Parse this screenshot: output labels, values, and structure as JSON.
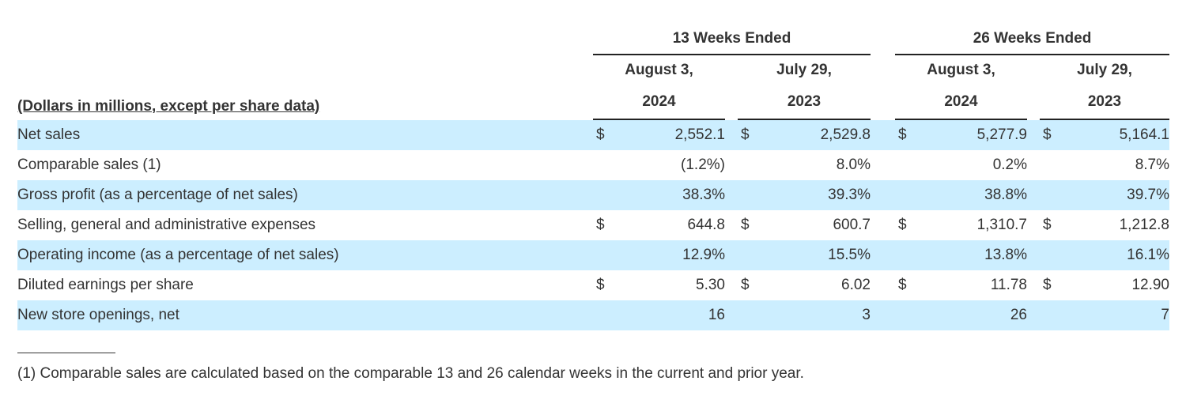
{
  "header": {
    "period_13": "13 Weeks Ended",
    "period_26": "26 Weeks Ended",
    "col1_month": "August 3,",
    "col1_year": "2024",
    "col2_month": "July 29,",
    "col2_year": "2023",
    "col3_month": "August 3,",
    "col3_year": "2024",
    "col4_month": "July 29,",
    "col4_year": "2023",
    "caption": "(Dollars in millions, except per share data)"
  },
  "rows": [
    {
      "label": "Net sales",
      "c1_cur": "$",
      "c1": "2,552.1",
      "c2_cur": "$",
      "c2": "2,529.8",
      "c3_cur": "$",
      "c3": "5,277.9",
      "c4_cur": "$",
      "c4": "5,164.1"
    },
    {
      "label": "Comparable sales (1)",
      "c1_cur": "",
      "c1": "(1.2%)",
      "c2_cur": "",
      "c2": "8.0%",
      "c3_cur": "",
      "c3": "0.2%",
      "c4_cur": "",
      "c4": "8.7%"
    },
    {
      "label": "Gross profit (as a percentage of net sales)",
      "c1_cur": "",
      "c1": "38.3%",
      "c2_cur": "",
      "c2": "39.3%",
      "c3_cur": "",
      "c3": "38.8%",
      "c4_cur": "",
      "c4": "39.7%"
    },
    {
      "label": "Selling, general and administrative expenses",
      "c1_cur": "$",
      "c1": "644.8",
      "c2_cur": "$",
      "c2": "600.7",
      "c3_cur": "$",
      "c3": "1,310.7",
      "c4_cur": "$",
      "c4": "1,212.8"
    },
    {
      "label": "Operating income (as a percentage of net sales)",
      "c1_cur": "",
      "c1": "12.9%",
      "c2_cur": "",
      "c2": "15.5%",
      "c3_cur": "",
      "c3": "13.8%",
      "c4_cur": "",
      "c4": "16.1%"
    },
    {
      "label": "Diluted earnings per share",
      "c1_cur": "$",
      "c1": "5.30",
      "c2_cur": "$",
      "c2": "6.02",
      "c3_cur": "$",
      "c3": "11.78",
      "c4_cur": "$",
      "c4": "12.90"
    },
    {
      "label": "New store openings, net",
      "c1_cur": "",
      "c1": "16",
      "c2_cur": "",
      "c2": "3",
      "c3_cur": "",
      "c3": "26",
      "c4_cur": "",
      "c4": "7"
    }
  ],
  "footnote": "(1) Comparable sales are calculated based on the comparable 13 and 26 calendar weeks in the current and prior year.",
  "colors": {
    "row_shade": "#cceeff",
    "text": "#333333",
    "rule": "#222222"
  }
}
